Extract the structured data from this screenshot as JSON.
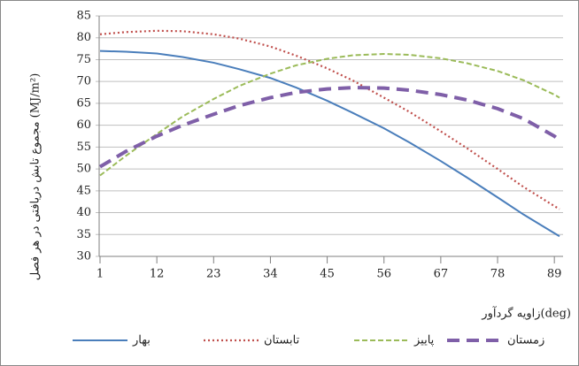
{
  "chart_data": {
    "type": "line",
    "y_label": "مجموع تابش دریافتی در هر فصل (MJ/m²)",
    "x_label": "زاویه گردآور(deg)",
    "x": [
      1,
      6,
      12,
      17,
      23,
      28,
      34,
      39,
      45,
      50,
      56,
      61,
      67,
      72,
      78,
      83,
      89,
      90
    ],
    "series": [
      {
        "name": "بهار",
        "color": "#4a7ebb",
        "dash": "solid",
        "values": [
          77,
          76.8,
          76.4,
          75.6,
          74.3,
          72.8,
          70.8,
          68.6,
          65.6,
          62.8,
          59.3,
          56,
          51.8,
          48.1,
          43.5,
          39.6,
          35.3,
          34.6
        ]
      },
      {
        "name": "تابستان",
        "color": "#c0504d",
        "dash": "dotted",
        "values": [
          80.8,
          81.3,
          81.6,
          81.5,
          80.8,
          79.8,
          78,
          75.9,
          73,
          70.2,
          66.3,
          63,
          58.6,
          54.8,
          50,
          45.9,
          41.5,
          40.8
        ]
      },
      {
        "name": "پاییز",
        "color": "#9bbb59",
        "dash": "dashed",
        "values": [
          48.5,
          53,
          58,
          62,
          66,
          69,
          71.8,
          73.7,
          75.2,
          76,
          76.3,
          76.1,
          75.3,
          74.2,
          72.4,
          70.3,
          67,
          66.3
        ]
      },
      {
        "name": "زمستان",
        "color": "#7f5fa8",
        "dash": "longdash",
        "values": [
          50.5,
          54,
          57.5,
          60,
          62.5,
          64.5,
          66.3,
          67.5,
          68.3,
          68.6,
          68.5,
          68,
          67,
          65.8,
          63.8,
          61.5,
          57.5,
          56.5
        ]
      }
    ],
    "xlim": [
      1,
      90
    ],
    "xticks": [
      1,
      12,
      23,
      34,
      45,
      56,
      67,
      78,
      89
    ],
    "ylim": [
      30,
      85
    ],
    "yticks": [
      30,
      35,
      40,
      45,
      50,
      55,
      60,
      65,
      70,
      75,
      80,
      85
    ],
    "grid": true,
    "legend": "bottom"
  }
}
